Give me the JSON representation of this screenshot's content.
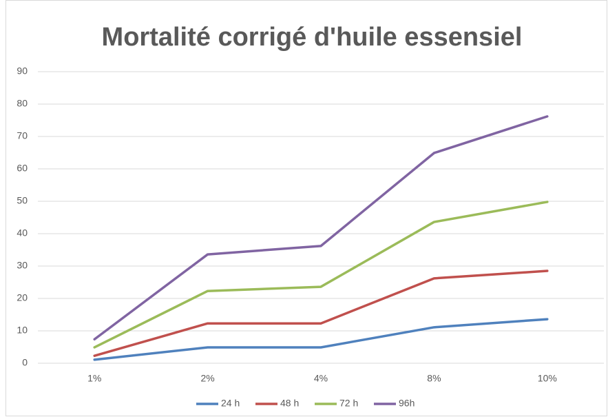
{
  "chart_data": {
    "type": "line",
    "title": "Mortalité corrigé d'huile essensiel",
    "categories": [
      "1%",
      "2%",
      "4%",
      "8%",
      "10%"
    ],
    "series": [
      {
        "name": "24 h",
        "color": "#4f81bd",
        "values": [
          1.1,
          4.9,
          4.9,
          11.1,
          13.6
        ]
      },
      {
        "name": "48 h",
        "color": "#c0504d",
        "values": [
          2.3,
          12.3,
          12.3,
          26.2,
          28.5
        ]
      },
      {
        "name": "72 h",
        "color": "#9bbb59",
        "values": [
          4.9,
          22.3,
          23.6,
          43.6,
          49.8
        ]
      },
      {
        "name": "96h",
        "color": "#8064a2",
        "values": [
          7.4,
          33.6,
          36.2,
          64.9,
          76.2
        ]
      }
    ],
    "ylim": [
      0,
      90
    ],
    "yticks": [
      0,
      10,
      20,
      30,
      40,
      50,
      60,
      70,
      80,
      90
    ],
    "grid": true,
    "legend": "bottom"
  }
}
